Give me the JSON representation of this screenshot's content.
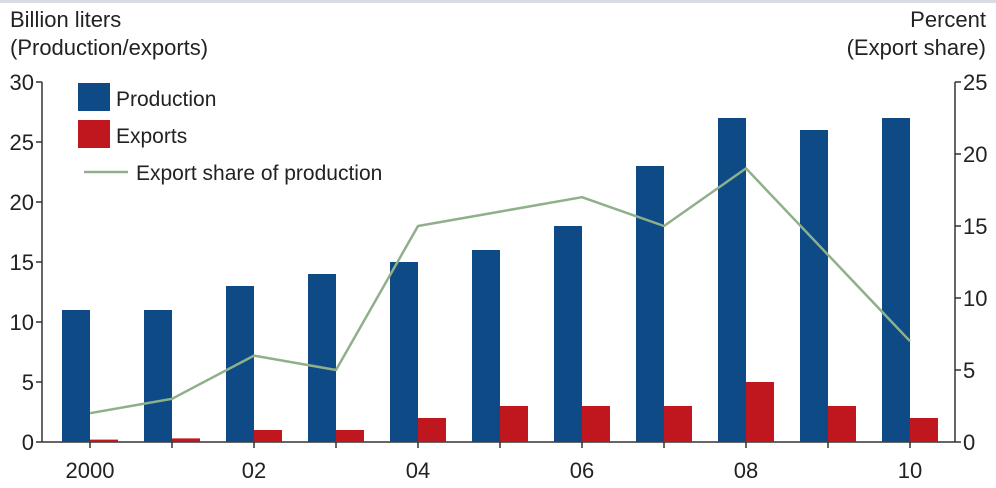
{
  "chart_data": {
    "type": "bar",
    "title": "",
    "ylabel_left": [
      "Billion liters",
      "(Production/exports)"
    ],
    "ylabel_right": [
      "Percent",
      "(Export share)"
    ],
    "x": [
      2000,
      2001,
      2002,
      2003,
      2004,
      2005,
      2006,
      2007,
      2008,
      2009,
      2010
    ],
    "x_tick_labels": [
      {
        "x": 2000,
        "label": "2000"
      },
      {
        "x": 2002,
        "label": "02"
      },
      {
        "x": 2004,
        "label": "04"
      },
      {
        "x": 2006,
        "label": "06"
      },
      {
        "x": 2008,
        "label": "08"
      },
      {
        "x": 2010,
        "label": "10"
      }
    ],
    "ylim_left": [
      0,
      30
    ],
    "yticks_left": [
      0,
      5,
      10,
      15,
      20,
      25,
      30
    ],
    "ylim_right": [
      0,
      25
    ],
    "yticks_right": [
      0,
      5,
      10,
      15,
      20,
      25
    ],
    "legend_placement": "top-left",
    "series": [
      {
        "name": "Production",
        "type": "bar",
        "axis": "left",
        "color": "#0d4a86",
        "values": [
          11,
          11,
          13,
          14,
          15,
          16,
          18,
          23,
          27,
          26,
          27
        ]
      },
      {
        "name": "Exports",
        "type": "bar",
        "axis": "left",
        "color": "#c0171f",
        "values": [
          0.2,
          0.3,
          1,
          1,
          2,
          3,
          3,
          3,
          5,
          3,
          2
        ]
      },
      {
        "name": "Export share of production",
        "type": "line",
        "axis": "right",
        "color": "#8fb08a",
        "values": [
          2,
          3,
          6,
          5,
          15,
          16,
          17,
          15,
          19,
          13,
          7
        ]
      }
    ]
  }
}
